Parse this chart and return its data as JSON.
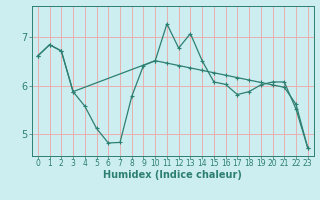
{
  "xlabel": "Humidex (Indice chaleur)",
  "bg_color": "#cceef0",
  "grid_color": "#e8b0b0",
  "line_color": "#2d7f72",
  "xlim": [
    -0.5,
    23.5
  ],
  "ylim": [
    4.55,
    7.65
  ],
  "yticks": [
    5,
    6,
    7
  ],
  "xticks": [
    0,
    1,
    2,
    3,
    4,
    5,
    6,
    7,
    8,
    9,
    10,
    11,
    12,
    13,
    14,
    15,
    16,
    17,
    18,
    19,
    20,
    21,
    22,
    23
  ],
  "line1_x": [
    0,
    1,
    2,
    3,
    4,
    5,
    6,
    7,
    8,
    9,
    10,
    11,
    12,
    13,
    14,
    15,
    16,
    17,
    18,
    19,
    20,
    21,
    22,
    23
  ],
  "line1_y": [
    6.62,
    6.85,
    6.72,
    5.88,
    5.58,
    5.12,
    4.82,
    4.83,
    5.78,
    6.42,
    6.52,
    7.28,
    6.78,
    7.08,
    6.52,
    6.08,
    6.03,
    5.82,
    5.88,
    6.02,
    6.08,
    6.08,
    5.52,
    4.72
  ],
  "line2_x": [
    0,
    1,
    2,
    3,
    10,
    11,
    12,
    13,
    14,
    15,
    16,
    17,
    18,
    19,
    20,
    21,
    22,
    23
  ],
  "line2_y": [
    6.62,
    6.85,
    6.72,
    5.88,
    6.52,
    6.47,
    6.42,
    6.37,
    6.32,
    6.27,
    6.22,
    6.17,
    6.12,
    6.07,
    6.02,
    5.97,
    5.62,
    4.72
  ],
  "tick_fontsize": 5.5,
  "xlabel_fontsize": 7,
  "ytick_fontsize": 7
}
